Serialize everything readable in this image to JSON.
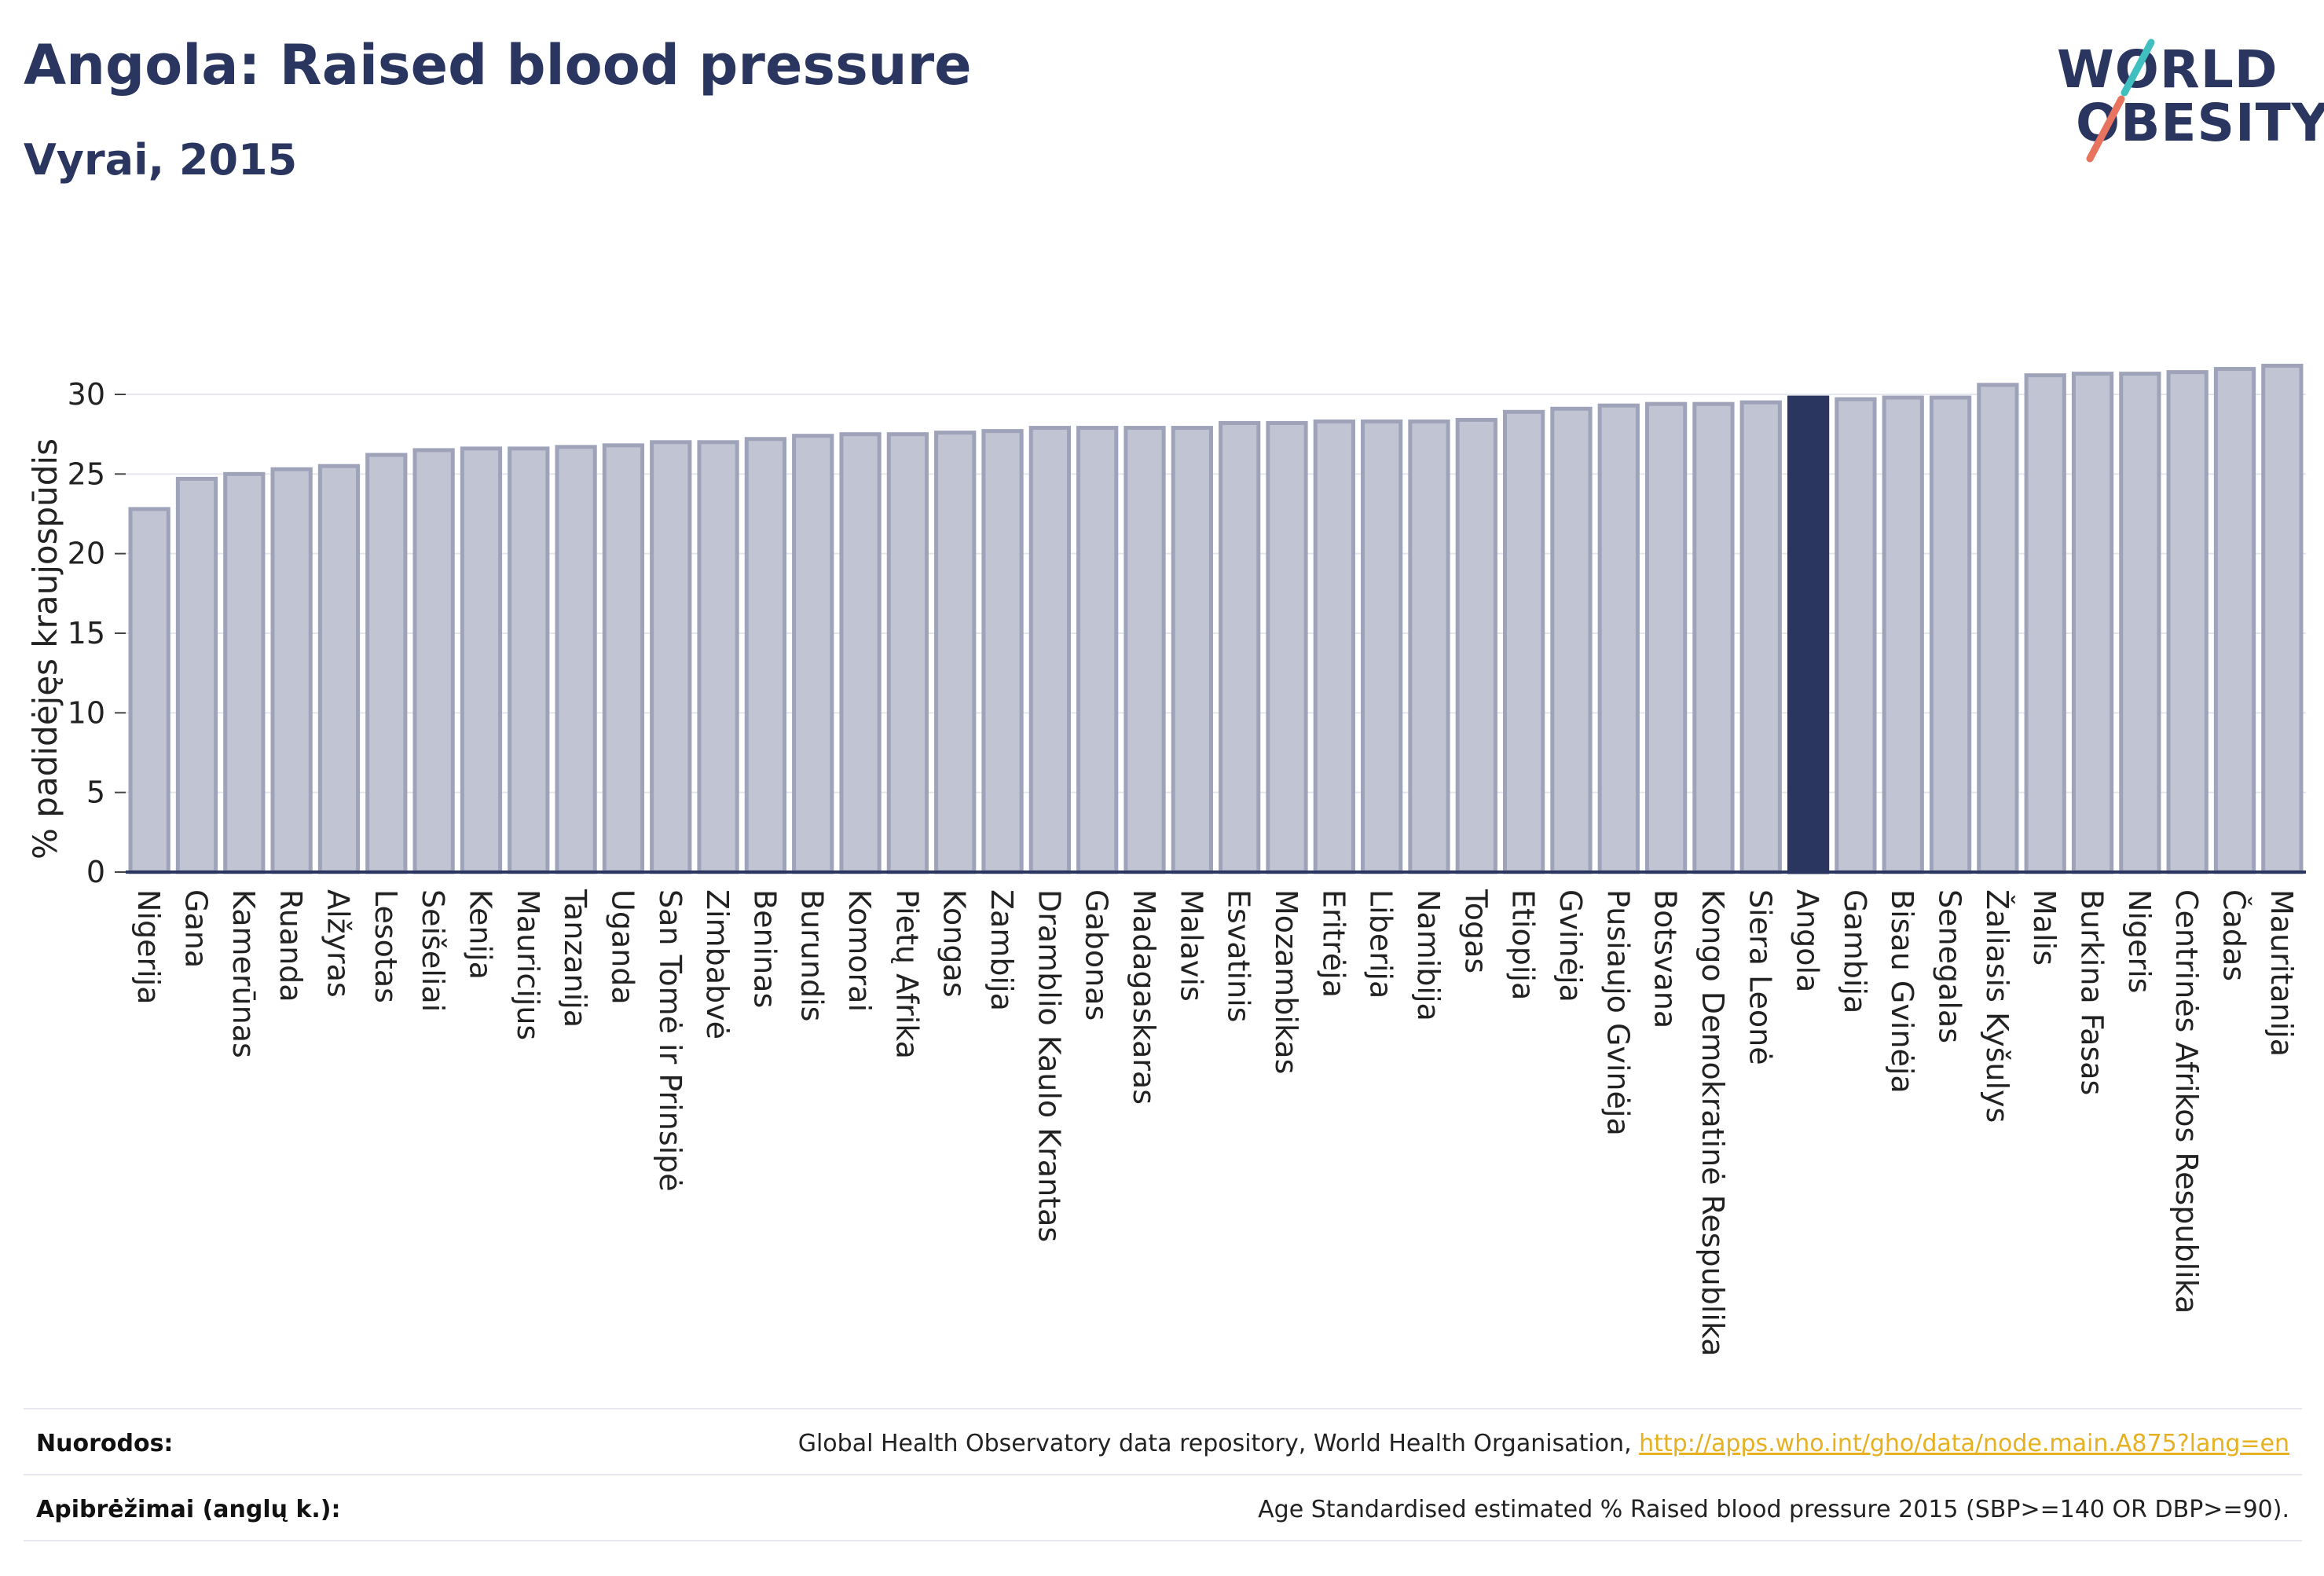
{
  "header": {
    "title": "Angola: Raised blood pressure",
    "subtitle": "Vyrai, 2015"
  },
  "logo": {
    "line1": "WORLD",
    "line2": "OBESITY"
  },
  "colors": {
    "bar": "#c0c4d3",
    "bar_stroke": "#9ea3ba",
    "highlight": "#2a3560",
    "grid": "#e6e7ee",
    "axis": "#2a3560"
  },
  "chart_data": {
    "type": "bar",
    "ylabel": "% padidėjęs kraujospūdis",
    "ylim": [
      0,
      32
    ],
    "yticks": [
      0,
      5,
      10,
      15,
      20,
      25,
      30
    ],
    "highlight": "Angola",
    "categories": [
      "Nigerija",
      "Gana",
      "Kamerūnas",
      "Ruanda",
      "Alžyras",
      "Lesotas",
      "Seišeliai",
      "Kenija",
      "Mauricijus",
      "Tanzanija",
      "Uganda",
      "San Tomė ir Prinsipė",
      "Zimbabvė",
      "Beninas",
      "Burundis",
      "Komorai",
      "Pietų Afrika",
      "Kongas",
      "Zambija",
      "Dramblio Kaulo Krantas",
      "Gabonas",
      "Madagaskaras",
      "Malavis",
      "Esvatinis",
      "Mozambikas",
      "Eritrėja",
      "Liberija",
      "Namibija",
      "Togas",
      "Etiopija",
      "Gvinėja",
      "Pusiaujo Gvinėja",
      "Botsvana",
      "Kongo Demokratinė Respublika",
      "Siera Leonė",
      "Angola",
      "Gambija",
      "Bisau Gvinėja",
      "Senegalas",
      "Žaliasis Kyšulys",
      "Malis",
      "Burkina Fasas",
      "Nigeris",
      "Centrinės Afrikos Respublika",
      "Čadas",
      "Mauritanija"
    ],
    "values": [
      22.8,
      24.7,
      25.0,
      25.3,
      25.5,
      26.2,
      26.5,
      26.6,
      26.6,
      26.7,
      26.8,
      27.0,
      27.0,
      27.2,
      27.4,
      27.5,
      27.5,
      27.6,
      27.7,
      27.9,
      27.9,
      27.9,
      27.9,
      28.2,
      28.2,
      28.3,
      28.3,
      28.3,
      28.4,
      28.9,
      29.1,
      29.3,
      29.4,
      29.4,
      29.5,
      29.8,
      29.7,
      29.8,
      29.8,
      30.6,
      31.2,
      31.3,
      31.3,
      31.4,
      31.6,
      31.8
    ]
  },
  "footer": {
    "sources_label": "Nuorodos:",
    "sources_text": "Global Health Observatory data repository, World Health Organisation, ",
    "sources_link": "http://apps.who.int/gho/data/node.main.A875?lang=en",
    "definitions_label": "Apibrėžimai (anglų k.):",
    "definitions_text": "Age Standardised estimated % Raised blood pressure 2015 (SBP>=140 OR DBP>=90)."
  }
}
